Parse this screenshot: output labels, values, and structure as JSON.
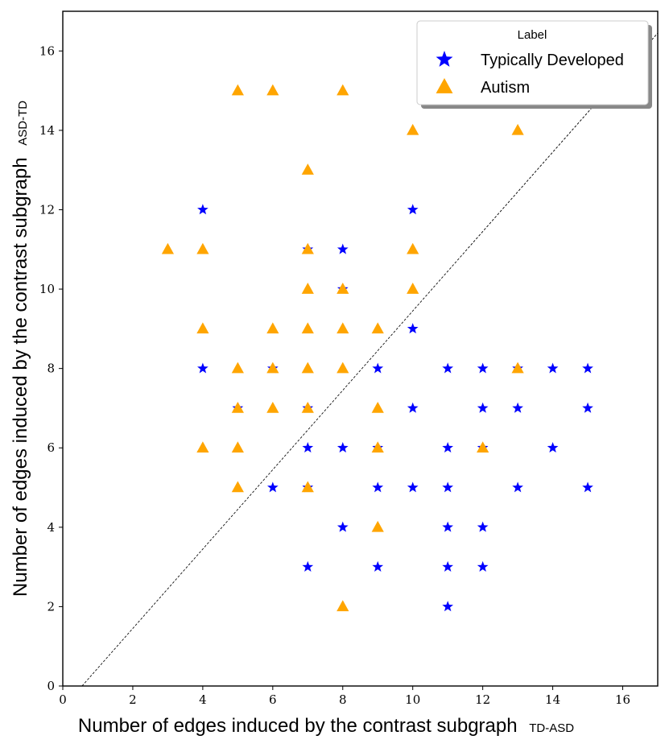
{
  "chart_data": {
    "type": "scatter",
    "xlabel": "Number of edges induced by the contrast subgraph",
    "xlabel_sub": "TD-ASD",
    "ylabel": "Number of edges induced by the contrast subgraph",
    "ylabel_sub": "ASD-TD",
    "xlim": [
      0,
      17
    ],
    "ylim": [
      0,
      17
    ],
    "xticks": [
      0,
      2,
      4,
      6,
      8,
      10,
      12,
      14,
      16
    ],
    "yticks": [
      0,
      2,
      4,
      6,
      8,
      10,
      12,
      14,
      16
    ],
    "grid": false,
    "legend": {
      "title": "Label",
      "placement": "top-right",
      "entries": [
        "Typically Developed",
        "Autism"
      ]
    },
    "diagonal": "dashed y = x reference line",
    "series": [
      {
        "name": "Typically Developed",
        "marker": "star",
        "color": "#0000ff",
        "points": [
          [
            4,
            12
          ],
          [
            4,
            8
          ],
          [
            6,
            8
          ],
          [
            7,
            11
          ],
          [
            8,
            11
          ],
          [
            8,
            10
          ],
          [
            10,
            12
          ],
          [
            10,
            9
          ],
          [
            7,
            7
          ],
          [
            5,
            7
          ],
          [
            9,
            8
          ],
          [
            11,
            8
          ],
          [
            12,
            8
          ],
          [
            13,
            8
          ],
          [
            14,
            8
          ],
          [
            15,
            8
          ],
          [
            10,
            7
          ],
          [
            12,
            7
          ],
          [
            13,
            7
          ],
          [
            15,
            7
          ],
          [
            7,
            6
          ],
          [
            8,
            6
          ],
          [
            9,
            6
          ],
          [
            11,
            6
          ],
          [
            12,
            6
          ],
          [
            14,
            6
          ],
          [
            6,
            5
          ],
          [
            7,
            5
          ],
          [
            9,
            5
          ],
          [
            10,
            5
          ],
          [
            11,
            5
          ],
          [
            13,
            5
          ],
          [
            15,
            5
          ],
          [
            8,
            4
          ],
          [
            11,
            4
          ],
          [
            12,
            4
          ],
          [
            7,
            3
          ],
          [
            9,
            3
          ],
          [
            11,
            3
          ],
          [
            12,
            3
          ],
          [
            11,
            2
          ]
        ]
      },
      {
        "name": "Autism",
        "marker": "triangle",
        "color": "#ffa500",
        "points": [
          [
            5,
            15
          ],
          [
            6,
            15
          ],
          [
            8,
            15
          ],
          [
            10,
            14
          ],
          [
            13,
            14
          ],
          [
            7,
            13
          ],
          [
            3,
            11
          ],
          [
            4,
            11
          ],
          [
            7,
            11
          ],
          [
            10,
            11
          ],
          [
            7,
            10
          ],
          [
            8,
            10
          ],
          [
            10,
            10
          ],
          [
            4,
            9
          ],
          [
            6,
            9
          ],
          [
            7,
            9
          ],
          [
            8,
            9
          ],
          [
            9,
            9
          ],
          [
            5,
            8
          ],
          [
            6,
            8
          ],
          [
            7,
            8
          ],
          [
            8,
            8
          ],
          [
            13,
            8
          ],
          [
            5,
            7
          ],
          [
            6,
            7
          ],
          [
            7,
            7
          ],
          [
            9,
            7
          ],
          [
            4,
            6
          ],
          [
            5,
            6
          ],
          [
            9,
            6
          ],
          [
            12,
            6
          ],
          [
            5,
            5
          ],
          [
            7,
            5
          ],
          [
            9,
            4
          ],
          [
            8,
            2
          ]
        ]
      }
    ]
  }
}
